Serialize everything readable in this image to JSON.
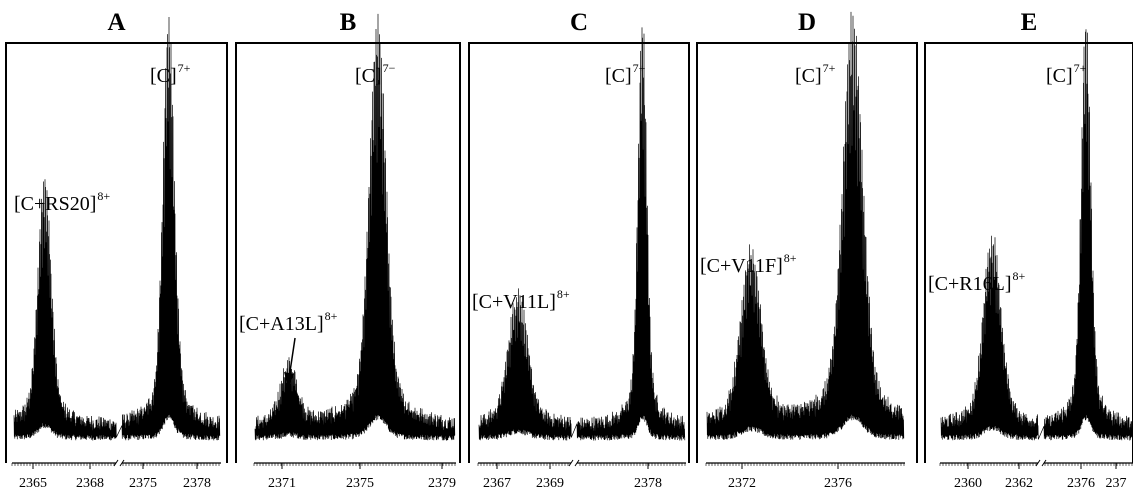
{
  "chart_data": [
    {
      "type": "line",
      "title": "A",
      "x_ticks": [
        "2365",
        "2368",
        "2375",
        "2378"
      ],
      "axis_break": true,
      "peaks": [
        {
          "label": "[C+RS20]",
          "charge": "8+",
          "center": 2365.5,
          "height": 0.62
        },
        {
          "label": "[C]",
          "charge": "7+",
          "center": 2376.3,
          "height": 1.0
        }
      ]
    },
    {
      "type": "line",
      "title": "B",
      "x_ticks": [
        "2371",
        "2375",
        "2379"
      ],
      "axis_break": false,
      "arrow": true,
      "peaks": [
        {
          "label": "[C+A13L]",
          "charge": "8+",
          "center": 2371.2,
          "height": 0.15
        },
        {
          "label": "[C]",
          "charge": "7−",
          "center": 2375.5,
          "height": 1.0
        }
      ]
    },
    {
      "type": "line",
      "title": "C",
      "x_ticks": [
        "2367",
        "2369",
        "2378"
      ],
      "axis_break": true,
      "peaks": [
        {
          "label": "[C+V11L]",
          "charge": "8+",
          "center": 2367.7,
          "height": 0.33
        },
        {
          "label": "[C]",
          "charge": "7+",
          "center": 2377.0,
          "height": 1.0
        }
      ]
    },
    {
      "type": "line",
      "title": "D",
      "x_ticks": [
        "2372",
        "2376"
      ],
      "axis_break": false,
      "peaks": [
        {
          "label": "[C+V11F]",
          "charge": "8+",
          "center": 2372.0,
          "height": 0.43
        },
        {
          "label": "[C]",
          "charge": "7+",
          "center": 2376.1,
          "height": 1.0
        }
      ]
    },
    {
      "type": "line",
      "title": "E",
      "x_ticks": [
        "2360",
        "2362",
        "2376",
        "237"
      ],
      "axis_break": true,
      "peaks": [
        {
          "label": "[C+R16L]",
          "charge": "8+",
          "center": 2360.9,
          "height": 0.47
        },
        {
          "label": "[C]",
          "charge": "7+",
          "center": 2376.5,
          "height": 1.0
        }
      ]
    }
  ]
}
